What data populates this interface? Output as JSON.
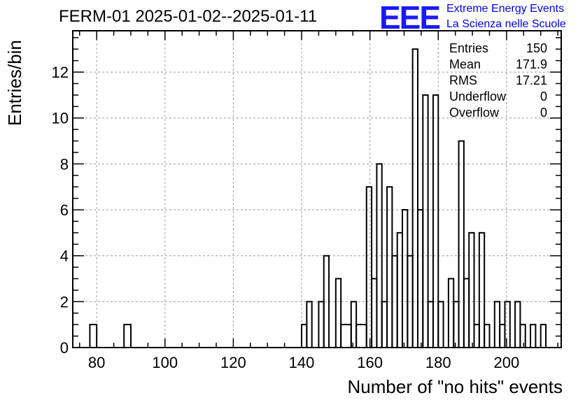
{
  "header": {
    "title": "FERM-01 2025-01-02--2025-01-11",
    "logo_mark": "EEE",
    "logo_line1": "Extreme Energy Events",
    "logo_line2": "La Scienza nelle Scuole"
  },
  "stats_box": {
    "rows": [
      {
        "label": "Entries",
        "value": "150"
      },
      {
        "label": "Mean",
        "value": "171.9"
      },
      {
        "label": "RMS",
        "value": "17.21"
      },
      {
        "label": "Underflow",
        "value": "0"
      },
      {
        "label": "Overflow",
        "value": "0"
      }
    ]
  },
  "colors": {
    "logo": "#1a1aff",
    "grid": "#9a9a9a",
    "line": "#000000"
  },
  "chart_data": {
    "type": "bar",
    "histogram": true,
    "xlabel": "Number of \"no hits\" events",
    "ylabel": "Entries/bin",
    "xlim": [
      73,
      216
    ],
    "ylim": [
      0,
      13.8
    ],
    "xticks": [
      80,
      100,
      120,
      140,
      160,
      180,
      200
    ],
    "yticks": [
      0,
      2,
      4,
      6,
      8,
      10,
      12
    ],
    "grid": true,
    "bins": [
      {
        "x0": 78,
        "x1": 80,
        "y": 1
      },
      {
        "x0": 88,
        "x1": 90,
        "y": 1
      },
      {
        "x0": 140,
        "x1": 141.5,
        "y": 1
      },
      {
        "x0": 141.5,
        "x1": 143,
        "y": 2
      },
      {
        "x0": 145,
        "x1": 146.5,
        "y": 2
      },
      {
        "x0": 146.5,
        "x1": 148,
        "y": 4
      },
      {
        "x0": 150,
        "x1": 151.5,
        "y": 3
      },
      {
        "x0": 151.5,
        "x1": 154.5,
        "y": 1
      },
      {
        "x0": 154.5,
        "x1": 156,
        "y": 2
      },
      {
        "x0": 156,
        "x1": 159,
        "y": 1
      },
      {
        "x0": 159,
        "x1": 160.5,
        "y": 7
      },
      {
        "x0": 160.5,
        "x1": 162,
        "y": 3
      },
      {
        "x0": 162,
        "x1": 163.5,
        "y": 8
      },
      {
        "x0": 163.5,
        "x1": 165,
        "y": 2
      },
      {
        "x0": 165,
        "x1": 166.5,
        "y": 7
      },
      {
        "x0": 166.5,
        "x1": 168,
        "y": 4
      },
      {
        "x0": 168,
        "x1": 169.5,
        "y": 5
      },
      {
        "x0": 169.5,
        "x1": 171,
        "y": 6
      },
      {
        "x0": 171,
        "x1": 172.5,
        "y": 4
      },
      {
        "x0": 172.5,
        "x1": 174,
        "y": 13
      },
      {
        "x0": 174,
        "x1": 175.5,
        "y": 6
      },
      {
        "x0": 175.5,
        "x1": 177,
        "y": 11
      },
      {
        "x0": 177,
        "x1": 178.5,
        "y": 2
      },
      {
        "x0": 178.5,
        "x1": 180,
        "y": 11
      },
      {
        "x0": 180,
        "x1": 181.5,
        "y": 2
      },
      {
        "x0": 183,
        "x1": 184.5,
        "y": 3
      },
      {
        "x0": 184.5,
        "x1": 186,
        "y": 2
      },
      {
        "x0": 186,
        "x1": 187.5,
        "y": 9
      },
      {
        "x0": 187.5,
        "x1": 189,
        "y": 3
      },
      {
        "x0": 189,
        "x1": 190.5,
        "y": 5
      },
      {
        "x0": 190.5,
        "x1": 192,
        "y": 1
      },
      {
        "x0": 192,
        "x1": 193.5,
        "y": 5
      },
      {
        "x0": 193.5,
        "x1": 195,
        "y": 1
      },
      {
        "x0": 196.5,
        "x1": 198,
        "y": 2
      },
      {
        "x0": 198,
        "x1": 199.5,
        "y": 1
      },
      {
        "x0": 199.5,
        "x1": 201,
        "y": 2
      },
      {
        "x0": 202.5,
        "x1": 204,
        "y": 2
      },
      {
        "x0": 204,
        "x1": 205.5,
        "y": 1
      },
      {
        "x0": 207,
        "x1": 208.5,
        "y": 1
      },
      {
        "x0": 210,
        "x1": 211.5,
        "y": 1
      }
    ]
  }
}
